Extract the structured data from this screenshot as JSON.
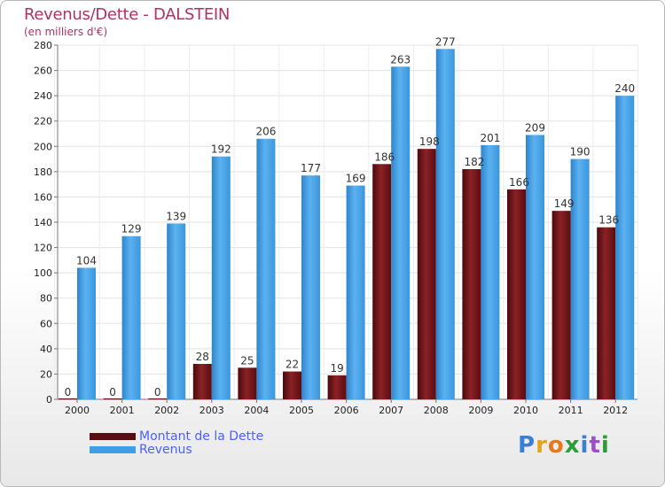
{
  "title": "Revenus/Dette - DALSTEIN",
  "subtitle": "(en milliers d'€)",
  "legend": {
    "debt_label": "Montant de la Dette",
    "revenue_label": "Revenus"
  },
  "logo": {
    "text": "Proxiti",
    "letters": [
      "P",
      "r",
      "o",
      "x",
      "i",
      "t",
      "i"
    ],
    "colors": [
      "#3a7fd6",
      "#e8a21a",
      "#e8781a",
      "#2a9d3a",
      "#3a7fd6",
      "#9b4fc9",
      "#2a9d3a"
    ]
  },
  "colors": {
    "debt": "#7a1216",
    "revenue": "#3f9fe6",
    "title": "#b0306a",
    "legend_text": "#4a60ff"
  },
  "chart_data": {
    "type": "bar",
    "title": "Revenus/Dette - DALSTEIN",
    "ylabel": "(en milliers d'€)",
    "xlabel": "",
    "ylim": [
      0,
      280
    ],
    "yticks": [
      0,
      20,
      40,
      60,
      80,
      100,
      120,
      140,
      160,
      180,
      200,
      220,
      240,
      260,
      280
    ],
    "grid": true,
    "legend_position": "bottom-left",
    "categories": [
      "2000",
      "2001",
      "2002",
      "2003",
      "2004",
      "2005",
      "2006",
      "2007",
      "2008",
      "2009",
      "2010",
      "2011",
      "2012"
    ],
    "series": [
      {
        "name": "Montant de la Dette",
        "values": [
          0,
          0,
          0,
          28,
          25,
          22,
          19,
          186,
          198,
          182,
          166,
          149,
          136
        ]
      },
      {
        "name": "Revenus",
        "values": [
          104,
          129,
          139,
          192,
          206,
          177,
          169,
          263,
          277,
          201,
          209,
          190,
          240
        ]
      }
    ]
  }
}
